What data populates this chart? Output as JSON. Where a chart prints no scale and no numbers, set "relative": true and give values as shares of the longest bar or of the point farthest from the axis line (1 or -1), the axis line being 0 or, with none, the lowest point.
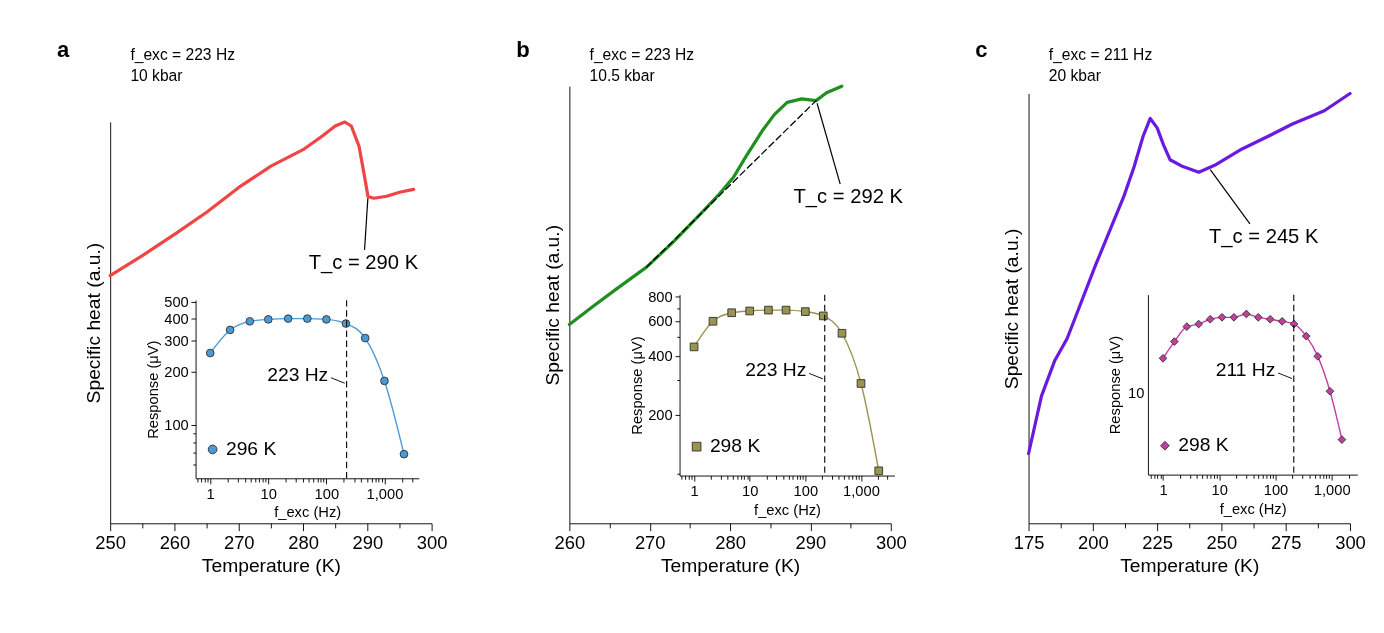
{
  "chart_data": [
    {
      "type": "line",
      "xlabel": "Temperature (K)",
      "ylabel": "Specific heat (a.u.)",
      "xlim": [
        250,
        300
      ],
      "relative": true,
      "xticks": [
        250,
        {
          "value": 255,
          "label": null
        },
        260,
        {
          "value": 265,
          "label": null
        },
        270,
        {
          "value": 275,
          "label": null
        },
        280,
        {
          "value": 285,
          "label": null
        },
        290,
        {
          "value": 295,
          "label": null
        },
        300
      ],
      "annotations": [
        "a",
        "f_exc = 223 Hz",
        "10 kbar",
        {
          "text": "T_c = 290 K",
          "x": 290.1,
          "y": 0.814
        }
      ],
      "series": [
        {
          "color": "#f04545",
          "x": [
            250,
            255,
            260,
            265,
            270,
            275,
            280,
            283,
            285,
            286.5,
            287.5,
            288.7,
            289.5,
            290.1,
            291,
            293,
            295,
            297.2
          ],
          "values": [
            0.617,
            0.667,
            0.72,
            0.775,
            0.837,
            0.89,
            0.931,
            0.965,
            0.99,
            1.0,
            0.99,
            0.94,
            0.87,
            0.814,
            0.81,
            0.815,
            0.825,
            0.832
          ]
        }
      ]
    },
    {
      "type": "line",
      "log": "xy",
      "marker": "circle",
      "legend": "bottom left",
      "xlabel": "f_exc (Hz)",
      "ylabel": "Response (μV)",
      "xlim": [
        0.56,
        3900
      ],
      "ylim": [
        50,
        510
      ],
      "xticks": [
        {
          "value": 0.6,
          "label": null
        },
        {
          "value": 0.7,
          "label": null
        },
        {
          "value": 0.8,
          "label": null
        },
        {
          "value": 0.9,
          "label": null
        },
        1,
        {
          "value": 2,
          "label": null
        },
        {
          "value": 3,
          "label": null
        },
        {
          "value": 4,
          "label": null
        },
        {
          "value": 5,
          "label": null
        },
        {
          "value": 6,
          "label": null
        },
        {
          "value": 7,
          "label": null
        },
        {
          "value": 8,
          "label": null
        },
        {
          "value": 9,
          "label": null
        },
        10,
        {
          "value": 20,
          "label": null
        },
        {
          "value": 30,
          "label": null
        },
        {
          "value": 40,
          "label": null
        },
        {
          "value": 50,
          "label": null
        },
        {
          "value": 60,
          "label": null
        },
        {
          "value": 70,
          "label": null
        },
        {
          "value": 80,
          "label": null
        },
        {
          "value": 90,
          "label": null
        },
        100,
        {
          "value": 200,
          "label": null
        },
        {
          "value": 300,
          "label": null
        },
        {
          "value": 400,
          "label": null
        },
        {
          "value": 500,
          "label": null
        },
        {
          "value": 600,
          "label": null
        },
        {
          "value": 700,
          "label": null
        },
        {
          "value": 800,
          "label": null
        },
        {
          "value": 900,
          "label": null
        },
        {
          "value": 1000,
          "label": "1,000"
        },
        {
          "value": 2000,
          "label": null
        },
        {
          "value": 3000,
          "label": null
        }
      ],
      "yticks": [
        {
          "value": 60,
          "label": null
        },
        {
          "value": 70,
          "label": null
        },
        {
          "value": 80,
          "label": null
        },
        {
          "value": 90,
          "label": null
        },
        100,
        200,
        300,
        400,
        500
      ],
      "ref_lines": [
        {
          "axis": "x",
          "value": 223,
          "label": "223 Hz",
          "color": "#000000",
          "line_style": "dashed"
        }
      ],
      "x": [
        1,
        2.2,
        4.8,
        10,
        22,
        47,
        100,
        217,
        466,
        1000,
        2170
      ],
      "series": [
        {
          "name": "296 K",
          "color": "#4a9ad6",
          "values": [
            256,
            346,
            387,
            397,
            401,
            401,
            397,
            376,
            311,
            178,
            68.5
          ]
        }
      ]
    },
    {
      "type": "line",
      "xlabel": "Temperature (K)",
      "ylabel": "Specific heat (a.u.)",
      "xlim": [
        260,
        300
      ],
      "relative": true,
      "xticks": [
        260,
        {
          "value": 265,
          "label": null
        },
        270,
        {
          "value": 275,
          "label": null
        },
        280,
        {
          "value": 285,
          "label": null
        },
        290,
        {
          "value": 295,
          "label": null
        },
        300
      ],
      "annotations": [
        "b",
        "f_exc = 223 Hz",
        "10.5 kbar",
        {
          "text": "T_c = 292 K",
          "x": 290.7,
          "y": 0.967
        }
      ],
      "series": [
        {
          "color": "#1f8f1f",
          "x": [
            260,
            263,
            266,
            269.6,
            273,
            276.8,
            278.5,
            280.4,
            282,
            284,
            285.5,
            287.1,
            288.9,
            290.7,
            292,
            293.9
          ],
          "values": [
            0.455,
            0.497,
            0.538,
            0.586,
            0.645,
            0.717,
            0.75,
            0.791,
            0.84,
            0.898,
            0.935,
            0.963,
            0.971,
            0.967,
            0.985,
            1.0
          ]
        },
        {
          "type": "line",
          "color": "#000000",
          "line_style": "dashed",
          "x": [
            269.6,
            290.7
          ],
          "values": [
            0.586,
            0.967
          ]
        }
      ]
    },
    {
      "type": "line",
      "log": "xy",
      "marker": "square",
      "legend": "bottom left",
      "xlabel": "f_exc (Hz)",
      "ylabel": "Response (μV)",
      "xlim": [
        0.55,
        4000
      ],
      "ylim": [
        98,
        820
      ],
      "xticks": [
        {
          "value": 0.6,
          "label": null
        },
        {
          "value": 0.7,
          "label": null
        },
        {
          "value": 0.8,
          "label": null
        },
        {
          "value": 0.9,
          "label": null
        },
        1,
        {
          "value": 2,
          "label": null
        },
        {
          "value": 3,
          "label": null
        },
        {
          "value": 4,
          "label": null
        },
        {
          "value": 5,
          "label": null
        },
        {
          "value": 6,
          "label": null
        },
        {
          "value": 7,
          "label": null
        },
        {
          "value": 8,
          "label": null
        },
        {
          "value": 9,
          "label": null
        },
        10,
        {
          "value": 20,
          "label": null
        },
        {
          "value": 30,
          "label": null
        },
        {
          "value": 40,
          "label": null
        },
        {
          "value": 50,
          "label": null
        },
        {
          "value": 60,
          "label": null
        },
        {
          "value": 70,
          "label": null
        },
        {
          "value": 80,
          "label": null
        },
        {
          "value": 90,
          "label": null
        },
        100,
        {
          "value": 200,
          "label": null
        },
        {
          "value": 300,
          "label": null
        },
        {
          "value": 400,
          "label": null
        },
        {
          "value": 500,
          "label": null
        },
        {
          "value": 600,
          "label": null
        },
        {
          "value": 700,
          "label": null
        },
        {
          "value": 800,
          "label": null
        },
        {
          "value": 900,
          "label": null
        },
        {
          "value": 1000,
          "label": "1,000"
        },
        {
          "value": 2000,
          "label": null
        },
        {
          "value": 3000,
          "label": null
        }
      ],
      "yticks": [
        {
          "value": 100,
          "label": null
        },
        200,
        {
          "value": 300,
          "label": null
        },
        400,
        {
          "value": 500,
          "label": null
        },
        600,
        {
          "value": 700,
          "label": null
        },
        800
      ],
      "ref_lines": [
        {
          "axis": "x",
          "value": 223,
          "label": "223 Hz",
          "color": "#000000",
          "line_style": "dashed"
        }
      ],
      "x": [
        1,
        2.19,
        4.75,
        10,
        21.7,
        45,
        100,
        210,
        455,
        1000,
        2085
      ],
      "series": [
        {
          "name": "298 K",
          "color": "#9a9450",
          "values": [
            444,
            600,
            663,
            677,
            684,
            684,
            672,
            639,
            521,
            289,
            103.6
          ]
        }
      ]
    },
    {
      "type": "line",
      "xlabel": "Temperature (K)",
      "ylabel": "Specific heat (a.u.)",
      "xlim": [
        175,
        300
      ],
      "relative": true,
      "xticks": [
        175,
        {
          "value": 187.5,
          "label": null
        },
        200,
        {
          "value": 212.5,
          "label": null
        },
        225,
        {
          "value": 237.5,
          "label": null
        },
        250,
        {
          "value": 262.5,
          "label": null
        },
        275,
        {
          "value": 287.5,
          "label": null
        },
        300
      ],
      "annotations": [
        "c",
        "f_exc = 211 Hz",
        "20 kbar",
        {
          "text": "T_c = 245 K",
          "x": 245,
          "y": 0.827
        }
      ],
      "series": [
        {
          "color": "#6a1ae0",
          "x": [
            175,
            180,
            185.2,
            190,
            196.4,
            201,
            207.6,
            212,
            216,
            219.5,
            222.3,
            225,
            227.5,
            230,
            235,
            241.2,
            248,
            258,
            268,
            277.6,
            290,
            300
          ],
          "values": [
            0.1625,
            0.296,
            0.379,
            0.43,
            0.529,
            0.6,
            0.696,
            0.76,
            0.829,
            0.9,
            0.942,
            0.92,
            0.88,
            0.846,
            0.83,
            0.817,
            0.835,
            0.871,
            0.9,
            0.929,
            0.96,
            1.0
          ]
        }
      ]
    },
    {
      "type": "line",
      "log": "x",
      "marker": "diamond",
      "legend": "bottom left",
      "xlabel": "f_exc (Hz)",
      "ylabel": "Response (μV)",
      "xlim": [
        0.54,
        2850
      ],
      "relative": true,
      "annotations": [
        "10"
      ],
      "xticks": [
        {
          "value": 0.6,
          "label": null
        },
        {
          "value": 0.7,
          "label": null
        },
        {
          "value": 0.8,
          "label": null
        },
        {
          "value": 0.9,
          "label": null
        },
        1,
        {
          "value": 2,
          "label": null
        },
        {
          "value": 3,
          "label": null
        },
        {
          "value": 4,
          "label": null
        },
        {
          "value": 5,
          "label": null
        },
        {
          "value": 6,
          "label": null
        },
        {
          "value": 7,
          "label": null
        },
        {
          "value": 8,
          "label": null
        },
        {
          "value": 9,
          "label": null
        },
        10,
        {
          "value": 20,
          "label": null
        },
        {
          "value": 30,
          "label": null
        },
        {
          "value": 40,
          "label": null
        },
        {
          "value": 50,
          "label": null
        },
        {
          "value": 60,
          "label": null
        },
        {
          "value": 70,
          "label": null
        },
        {
          "value": 80,
          "label": null
        },
        {
          "value": 90,
          "label": null
        },
        100,
        {
          "value": 200,
          "label": null
        },
        {
          "value": 300,
          "label": null
        },
        {
          "value": 400,
          "label": null
        },
        {
          "value": 500,
          "label": null
        },
        {
          "value": 600,
          "label": null
        },
        {
          "value": 700,
          "label": null
        },
        {
          "value": 800,
          "label": null
        },
        {
          "value": 900,
          "label": null
        },
        {
          "value": 1000,
          "label": "1,000"
        },
        {
          "value": 2000,
          "label": null
        }
      ],
      "ref_lines": [
        {
          "axis": "x",
          "value": 211,
          "label": "211 Hz",
          "color": "#000000",
          "line_style": "dashed"
        }
      ],
      "x": [
        1,
        1.59,
        2.65,
        4.3,
        6.9,
        11.2,
        18.2,
        30.3,
        49.3,
        80.3,
        131,
        213,
        351,
        564,
        929,
        1514
      ],
      "series": [
        {
          "name": "298 K",
          "color": "#c0409e",
          "values": [
            0.724,
            0.828,
            0.921,
            0.937,
            0.967,
            0.979,
            0.979,
            1.0,
            0.979,
            0.967,
            0.954,
            0.937,
            0.862,
            0.736,
            0.519,
            0.218
          ]
        }
      ]
    }
  ]
}
